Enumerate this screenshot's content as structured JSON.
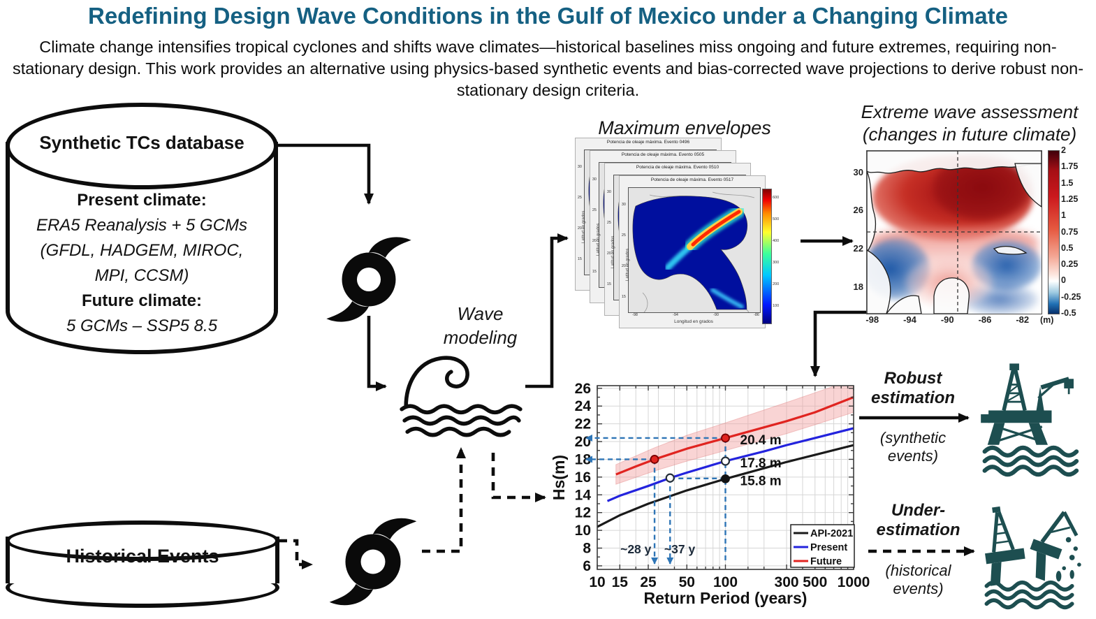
{
  "colors": {
    "title": "#156082",
    "platform": "#1d4e50",
    "guide": "#2e75b6"
  },
  "page": {
    "title": "Redefining Design Wave Conditions in the Gulf of Mexico under a Changing Climate",
    "subtitle": "Climate change intensifies tropical cyclones and shifts wave climates—historical baselines miss ongoing and future extremes, requiring non-stationary design. This work provides an alternative using physics-based synthetic events and bias-corrected wave projections to derive robust non-stationary design criteria."
  },
  "synthetic_db": {
    "title": "Synthetic TCs database",
    "present_heading": "Present climate:",
    "present_line1": "ERA5 Reanalysis + 5 GCMs",
    "present_line2": "(GFDL, HADGEM, MIROC,",
    "present_line3": "MPI, CCSM)",
    "future_heading": "Future climate:",
    "future_line": "5 GCMs – SSP5 8.5"
  },
  "historical_db": {
    "title": "Historical Events"
  },
  "wave": {
    "label_line1": "Wave",
    "label_line2": "modeling"
  },
  "envelopes": {
    "caption": "Maximum envelopes",
    "panel_titles": [
      "Potencia de oleaje máxima.  Evento 0496",
      "Potencia de oleaje máxima.  Evento 0505",
      "Potencia de oleaje máxima.  Evento 0510",
      "Potencia de oleaje máxima.  Evento 0517"
    ],
    "ylabel": "Latitud en grados",
    "xlabel": "Longitud en grados",
    "yticks": [
      "30",
      "25",
      "20",
      "15"
    ],
    "xticks": [
      "-98",
      "-94",
      "-90",
      "-86"
    ],
    "colorbar_ticks": [
      "600",
      "500",
      "400",
      "300",
      "200",
      "100"
    ]
  },
  "assessment": {
    "caption_line1": "Extreme wave assessment",
    "caption_line2": "(changes in future climate)",
    "yticks": [
      "30",
      "26",
      "22",
      "18"
    ],
    "xticks": [
      "-98",
      "-94",
      "-90",
      "-86",
      "-82"
    ],
    "colorbar_ticks": [
      "2",
      "1.75",
      "1.5",
      "1.25",
      "1",
      "0.75",
      "0.5",
      "0.25",
      "0",
      "-0.25",
      "-0.5"
    ],
    "colorbar_unit": "(m)"
  },
  "outcomes": {
    "robust_line1": "Robust",
    "robust_line2": "estimation",
    "robust_sub1": "(synthetic",
    "robust_sub2": "events)",
    "under_line1": "Under-",
    "under_line2": "estimation",
    "under_sub1": "(historical",
    "under_sub2": "events)"
  },
  "chart_data": {
    "type": "line",
    "xlabel": "Return Period (years)",
    "ylabel": "Hs(m)",
    "x_scale": "log",
    "xlim": [
      10,
      1000
    ],
    "ylim": [
      5.6,
      26.3
    ],
    "xticks": [
      10,
      15,
      25,
      50,
      100,
      300,
      500,
      1000
    ],
    "yticks": [
      6,
      8,
      10,
      12,
      14,
      16,
      18,
      20,
      22,
      24,
      26
    ],
    "grid_x": [
      10,
      15,
      20,
      25,
      30,
      40,
      50,
      60,
      70,
      80,
      90,
      100,
      150,
      200,
      300,
      400,
      500,
      600,
      700,
      800,
      900,
      1000
    ],
    "legend": {
      "position": "lower right",
      "entries": [
        "API-2021",
        "Present",
        "Future"
      ]
    },
    "series": [
      {
        "name": "API-2021",
        "color": "#1a1a1a",
        "x": [
          10,
          15,
          25,
          50,
          100,
          200,
          300,
          500,
          1000
        ],
        "y": [
          10.4,
          11.7,
          13.0,
          14.5,
          15.8,
          17.0,
          17.7,
          18.5,
          19.6
        ]
      },
      {
        "name": "Present",
        "color": "#2323dd",
        "x": [
          12,
          15,
          25,
          37,
          50,
          100,
          200,
          300,
          500,
          1000
        ],
        "y": [
          13.3,
          13.9,
          15.0,
          15.9,
          16.5,
          17.8,
          18.9,
          19.6,
          20.4,
          21.5
        ]
      },
      {
        "name": "Future",
        "color": "#e02420",
        "x": [
          14,
          20,
          28,
          50,
          100,
          200,
          300,
          500,
          1000
        ],
        "y": [
          16.3,
          17.2,
          18.0,
          19.2,
          20.4,
          21.6,
          22.3,
          23.3,
          25.0
        ]
      }
    ],
    "band": {
      "series": "Future",
      "color": "#f2a2a2",
      "opacity": 0.45,
      "edge": "#e06a6a",
      "x": [
        14,
        28,
        50,
        100,
        300,
        500,
        1000
      ],
      "upper": [
        17.4,
        19.3,
        20.7,
        22.1,
        24.4,
        25.5,
        27.0
      ],
      "lower": [
        15.2,
        16.7,
        17.8,
        19.0,
        20.9,
        21.9,
        23.3
      ]
    },
    "annotations": {
      "points": [
        {
          "x": 100,
          "y": 20.4,
          "marker": "filled",
          "color": "#e02420",
          "edge": "#7a0000",
          "label": "20.4 m"
        },
        {
          "x": 28,
          "y": 18.0,
          "marker": "filled",
          "color": "#e02420",
          "edge": "#7a0000"
        },
        {
          "x": 100,
          "y": 17.8,
          "marker": "open",
          "label": "17.8 m"
        },
        {
          "x": 37,
          "y": 15.9,
          "marker": "open"
        },
        {
          "x": 100,
          "y": 15.8,
          "marker": "filled",
          "color": "#141414",
          "edge": "#141414",
          "label": "15.8 m"
        }
      ],
      "vlines": [
        {
          "x": 28,
          "y_top": 18.0,
          "arrow": true
        },
        {
          "x": 37,
          "y_top": 15.9,
          "arrow": true
        },
        {
          "x": 100,
          "y_top": 20.4,
          "arrow": false
        }
      ],
      "hlines": [
        {
          "y": 20.4,
          "x_from": 100,
          "arrow": true
        },
        {
          "y": 18.0,
          "x_from": 28,
          "arrow": true
        },
        {
          "y": 15.85,
          "x_from": 37,
          "x_to": 100,
          "arrow": false
        }
      ],
      "guide_labels": [
        {
          "text": "~28 y",
          "x": 20,
          "y": 7.4
        },
        {
          "text": "~37 y",
          "x": 44,
          "y": 7.4
        }
      ],
      "guide_color": "#2e75b6"
    }
  }
}
